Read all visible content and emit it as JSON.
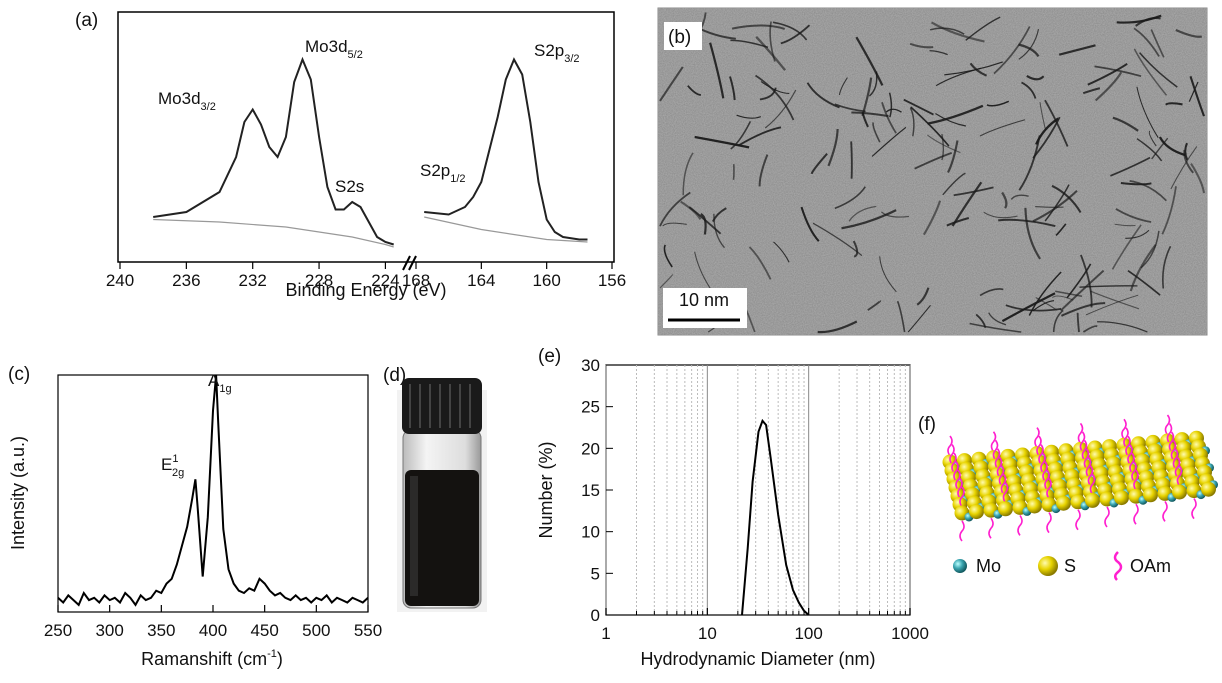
{
  "chart_data": [
    {
      "type": "line",
      "panel_label": "(a)",
      "xlabel": "Binding Energy (eV)",
      "ylim": [
        0,
        100
      ],
      "segments": [
        {
          "xlim": [
            240,
            223
          ],
          "xticks": [
            240,
            236,
            232,
            228,
            224
          ],
          "series": [
            {
              "color": "#222222",
              "x": [
                238,
                236,
                234,
                233,
                232.5,
                232,
                231.5,
                231,
                230.5,
                230,
                229.5,
                229,
                228.5,
                228,
                227.5,
                227,
                226.5,
                226,
                225.5,
                225,
                224.5,
                224,
                223.5
              ],
              "values": [
                18,
                20,
                28,
                42,
                56,
                61,
                55,
                46,
                42,
                50,
                72,
                81,
                73,
                50,
                30,
                21,
                21,
                24,
                22,
                16,
                10,
                8,
                7
              ]
            },
            {
              "color": "#999999",
              "x": [
                238,
                234,
                230,
                228,
                226,
                224,
                223.5
              ],
              "values": [
                17,
                16,
                14,
                12,
                10,
                7,
                6
              ]
            }
          ]
        },
        {
          "xlim": [
            168,
            156
          ],
          "xticks": [
            168,
            164,
            160,
            156
          ],
          "series": [
            {
              "color": "#222222",
              "x": [
                167.5,
                166,
                165,
                164.5,
                164,
                163.5,
                163,
                162.5,
                162,
                161.5,
                161,
                160.5,
                160,
                159.5,
                159,
                158,
                157.5
              ],
              "values": [
                20,
                19,
                22,
                26,
                32,
                45,
                58,
                73,
                81,
                75,
                56,
                32,
                17,
                12,
                10,
                9,
                9
              ]
            },
            {
              "color": "#999999",
              "x": [
                167.5,
                164,
                160,
                157.5
              ],
              "values": [
                18,
                13,
                9,
                8
              ]
            }
          ]
        }
      ],
      "annotations": [
        {
          "text": "Mo3d",
          "sub": "3/2"
        },
        {
          "text": "Mo3d",
          "sub": "5/2"
        },
        {
          "text": "S2s"
        },
        {
          "text": "S2p",
          "sub": "1/2"
        },
        {
          "text": "S2p",
          "sub": "3/2"
        }
      ]
    },
    {
      "type": "line",
      "panel_label": "(c)",
      "ylabel": "Intensity (a.u.)",
      "xlabel": {
        "text": "Ramanshift (cm",
        "sup": "-1",
        "tail": ")"
      },
      "ylim": [
        0,
        100
      ],
      "segments": [
        {
          "xlim": [
            250,
            550
          ],
          "xticks": [
            250,
            300,
            350,
            400,
            450,
            500,
            550
          ],
          "series": [
            {
              "color": "#000000",
              "x": [
                250,
                255,
                260,
                265,
                270,
                275,
                280,
                285,
                290,
                295,
                300,
                305,
                310,
                315,
                320,
                325,
                330,
                335,
                340,
                345,
                350,
                355,
                360,
                365,
                370,
                375,
                380,
                383,
                385,
                390,
                395,
                400,
                403,
                405,
                410,
                415,
                420,
                425,
                430,
                435,
                440,
                445,
                450,
                455,
                460,
                465,
                470,
                475,
                480,
                485,
                490,
                495,
                500,
                505,
                510,
                515,
                520,
                525,
                530,
                535,
                540,
                545,
                550
              ],
              "values": [
                6,
                4,
                7,
                5,
                3,
                8,
                5,
                6,
                4,
                7,
                5,
                6,
                4,
                8,
                6,
                3,
                7,
                5,
                6,
                9,
                8,
                12,
                14,
                20,
                28,
                36,
                48,
                56,
                45,
                15,
                40,
                85,
                100,
                80,
                35,
                18,
                12,
                9,
                8,
                10,
                9,
                14,
                12,
                9,
                7,
                8,
                6,
                5,
                7,
                5,
                6,
                4,
                6,
                5,
                7,
                4,
                6,
                5,
                4,
                6,
                5,
                4,
                6
              ]
            }
          ]
        }
      ],
      "annotations": [
        {
          "text": "E",
          "sup": "1",
          "sub": "2g"
        },
        {
          "text": "A",
          "sub": "1g"
        }
      ]
    },
    {
      "type": "line",
      "panel_label": "(e)",
      "ylabel": "Number (%)",
      "xlabel": "Hydrodynamic Diameter (nm)",
      "ylim": [
        0,
        30
      ],
      "yticks": [
        0,
        5,
        10,
        15,
        20,
        25,
        30
      ],
      "segments": [
        {
          "xlim": [
            1,
            1000
          ],
          "xscale": "log",
          "xticks": [
            1,
            10,
            100,
            1000
          ],
          "grid": true,
          "xminorticks": [
            2,
            3,
            4,
            5,
            6,
            7,
            8,
            9,
            20,
            30,
            40,
            50,
            60,
            70,
            80,
            90,
            200,
            300,
            400,
            500,
            600,
            700,
            800,
            900
          ],
          "series": [
            {
              "color": "#000000",
              "x": [
                22,
                25,
                28,
                32,
                35,
                38,
                42,
                50,
                60,
                70,
                80,
                90,
                100
              ],
              "values": [
                0,
                8,
                16,
                22,
                23.3,
                22.8,
                19,
                12,
                6,
                3,
                1.5,
                0.5,
                0
              ]
            }
          ]
        }
      ],
      "annotations": []
    }
  ],
  "panels": {
    "b": {
      "label": "(b)",
      "scale_bar": "10 nm"
    },
    "d": {
      "label": "(d)"
    },
    "f": {
      "label": "(f)",
      "legend": [
        "Mo",
        "S",
        "OAm"
      ]
    }
  }
}
